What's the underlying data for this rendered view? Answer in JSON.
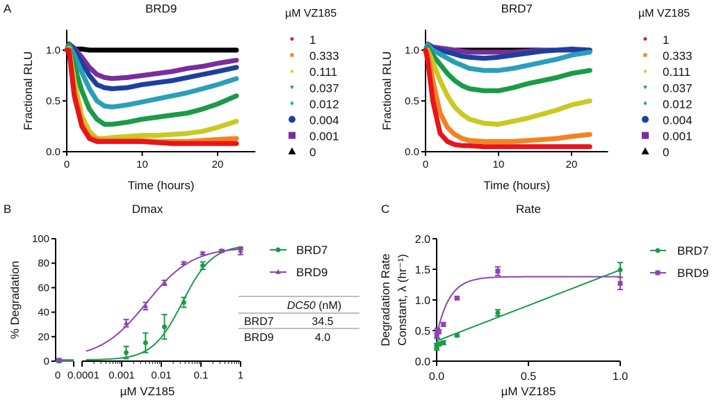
{
  "chart_data": [
    {
      "panel": "A",
      "type": "scatter",
      "title": "BRD9",
      "xlabel": "Time (hours)",
      "ylabel": "Fractional RLU",
      "xlim": [
        0,
        25
      ],
      "ylim": [
        0,
        1.2
      ],
      "xticks": [
        0,
        10,
        20
      ],
      "yticks": [
        "0.0",
        "0.5",
        "1.0"
      ],
      "legend_title": "µM VZ185",
      "legend_position": "right",
      "x": [
        0,
        0.3,
        1,
        2,
        3,
        4,
        5,
        6,
        8,
        10,
        12,
        14,
        16,
        18,
        20,
        22.5
      ],
      "series": [
        {
          "name": "1",
          "color": "#e8141c",
          "marker": "circle-small",
          "values": [
            1,
            1.0,
            0.55,
            0.25,
            0.13,
            0.1,
            0.1,
            0.1,
            0.1,
            0.1,
            0.09,
            0.08,
            0.08,
            0.08,
            0.08,
            0.08
          ]
        },
        {
          "name": "0.333",
          "color": "#f5821f",
          "marker": "square-small",
          "values": [
            1,
            1.0,
            0.6,
            0.27,
            0.15,
            0.12,
            0.11,
            0.11,
            0.11,
            0.11,
            0.1,
            0.1,
            0.1,
            0.11,
            0.12,
            0.13
          ]
        },
        {
          "name": "0.111",
          "color": "#c9c923",
          "marker": "triangle-up-small",
          "values": [
            1,
            1.02,
            0.7,
            0.35,
            0.2,
            0.13,
            0.13,
            0.14,
            0.15,
            0.16,
            0.16,
            0.17,
            0.18,
            0.2,
            0.24,
            0.3
          ]
        },
        {
          "name": "0.037",
          "color": "#1b9a48",
          "marker": "triangle-down-small",
          "values": [
            1,
            1.04,
            0.85,
            0.6,
            0.42,
            0.32,
            0.27,
            0.27,
            0.29,
            0.32,
            0.34,
            0.36,
            0.38,
            0.42,
            0.47,
            0.55
          ]
        },
        {
          "name": "0.012",
          "color": "#2aa0b8",
          "marker": "diamond-small",
          "values": [
            1,
            1.05,
            0.95,
            0.78,
            0.62,
            0.5,
            0.45,
            0.44,
            0.46,
            0.49,
            0.52,
            0.55,
            0.58,
            0.62,
            0.66,
            0.72
          ]
        },
        {
          "name": "0.004",
          "color": "#1d3f9e",
          "marker": "circle",
          "values": [
            1,
            1.06,
            1.0,
            0.88,
            0.75,
            0.66,
            0.63,
            0.62,
            0.63,
            0.66,
            0.68,
            0.7,
            0.73,
            0.76,
            0.79,
            0.83
          ]
        },
        {
          "name": "0.001",
          "color": "#7b2d9b",
          "marker": "square",
          "values": [
            1,
            1.06,
            1.02,
            0.93,
            0.83,
            0.76,
            0.73,
            0.72,
            0.73,
            0.75,
            0.77,
            0.79,
            0.82,
            0.84,
            0.87,
            0.9
          ]
        },
        {
          "name": "0",
          "color": "#000000",
          "marker": "triangle-up",
          "values": [
            1,
            1.02,
            1.01,
            1.01,
            1.0,
            1.0,
            1.0,
            1.0,
            1.0,
            1.0,
            1.0,
            1.0,
            1.0,
            1.0,
            1.0,
            1.0
          ]
        }
      ]
    },
    {
      "type": "scatter",
      "title": "BRD7",
      "xlabel": "Time (hours)",
      "ylabel": "Fractional RLU",
      "xlim": [
        0,
        25
      ],
      "ylim": [
        0,
        1.2
      ],
      "xticks": [
        0,
        10,
        20
      ],
      "yticks": [
        "0.0",
        "0.5",
        "1.0"
      ],
      "legend_title": "µM VZ185",
      "legend_position": "right",
      "x": [
        0,
        0.3,
        1,
        2,
        3,
        4,
        5,
        6,
        8,
        10,
        12,
        14,
        16,
        18,
        20,
        22.5
      ],
      "series": [
        {
          "name": "1",
          "color": "#e8141c",
          "marker": "circle-small",
          "values": [
            1,
            0.9,
            0.5,
            0.18,
            0.1,
            0.07,
            0.06,
            0.06,
            0.05,
            0.05,
            0.05,
            0.05,
            0.05,
            0.05,
            0.05,
            0.05
          ]
        },
        {
          "name": "0.333",
          "color": "#f5821f",
          "marker": "square-small",
          "values": [
            1,
            0.98,
            0.7,
            0.38,
            0.24,
            0.17,
            0.13,
            0.11,
            0.1,
            0.1,
            0.1,
            0.11,
            0.12,
            0.13,
            0.15,
            0.17
          ]
        },
        {
          "name": "0.111",
          "color": "#c9c923",
          "marker": "triangle-up-small",
          "values": [
            1,
            1.0,
            0.88,
            0.7,
            0.55,
            0.44,
            0.37,
            0.32,
            0.28,
            0.27,
            0.3,
            0.33,
            0.37,
            0.41,
            0.46,
            0.5
          ]
        },
        {
          "name": "0.037",
          "color": "#1b9a48",
          "marker": "triangle-down-small",
          "values": [
            1,
            1.03,
            0.95,
            0.86,
            0.77,
            0.7,
            0.65,
            0.62,
            0.6,
            0.6,
            0.63,
            0.67,
            0.7,
            0.73,
            0.77,
            0.8
          ]
        },
        {
          "name": "0.012",
          "color": "#2aa0b8",
          "marker": "diamond-small",
          "values": [
            1,
            1.05,
            1.0,
            0.96,
            0.92,
            0.88,
            0.85,
            0.82,
            0.8,
            0.8,
            0.82,
            0.85,
            0.88,
            0.91,
            0.95,
            0.98
          ]
        },
        {
          "name": "0.004",
          "color": "#1d3f9e",
          "marker": "circle",
          "values": [
            1,
            1.05,
            1.02,
            1.0,
            0.98,
            0.96,
            0.94,
            0.93,
            0.92,
            0.93,
            0.95,
            0.97,
            0.99,
            1.0,
            1.01,
            1.0
          ]
        },
        {
          "name": "0.001",
          "color": "#7b2d9b",
          "marker": "square",
          "values": [
            1,
            1.06,
            1.03,
            1.02,
            1.01,
            1.0,
            0.99,
            0.98,
            0.98,
            0.98,
            0.98,
            0.99,
            1.0,
            1.0,
            1.0,
            1.0
          ]
        },
        {
          "name": "0",
          "color": "#000000",
          "marker": "triangle-up",
          "values": [
            1,
            1.02,
            1.01,
            1.01,
            1.0,
            1.0,
            1.0,
            1.0,
            1.0,
            1.0,
            1.0,
            1.0,
            1.0,
            1.0,
            1.0,
            1.0
          ]
        }
      ]
    },
    {
      "panel": "B",
      "type": "scatter",
      "title": "Dmax",
      "xlabel": "µM VZ185",
      "ylabel": "% Degradation",
      "xscale": "log (with broken axis for 0)",
      "xlim": [
        0.0001,
        1
      ],
      "ylim": [
        0,
        100
      ],
      "xticks": [
        "0",
        "0.0001",
        "0.001",
        "0.01",
        "0.1",
        "1"
      ],
      "yticks": [
        0,
        20,
        40,
        60,
        80,
        100
      ],
      "legend_position": "right",
      "series": [
        {
          "name": "BRD7",
          "color": "#1b9a48",
          "marker": "circle",
          "x": [
            0,
            0.0013,
            0.004,
            0.012,
            0.037,
            0.111,
            0.333,
            1
          ],
          "values": [
            0,
            7,
            15,
            28,
            48,
            78,
            90,
            92
          ],
          "errors": [
            1,
            5,
            8,
            10,
            4,
            3,
            1,
            1
          ]
        },
        {
          "name": "BRD9",
          "color": "#8e44ad",
          "marker": "triangle-up",
          "x": [
            0,
            0.0013,
            0.004,
            0.012,
            0.037,
            0.111,
            0.333,
            1
          ],
          "values": [
            1,
            31,
            45,
            64,
            80,
            88,
            90,
            90
          ],
          "errors": [
            1,
            3,
            3,
            2,
            1,
            1,
            1,
            3
          ]
        }
      ],
      "table": {
        "header": [
          "",
          "DC50",
          "(nM)"
        ],
        "rows": [
          [
            "BRD7",
            "34.5"
          ],
          [
            "BRD9",
            "4.0"
          ]
        ]
      }
    },
    {
      "panel": "C",
      "type": "scatter",
      "title": "Rate",
      "xlabel": "µM VZ185",
      "ylabel_line1": "Degradation Rate",
      "ylabel_line2": "Constant, λ (hr⁻¹)",
      "xlim": [
        0,
        1
      ],
      "ylim": [
        0,
        2
      ],
      "xticks": [
        "0.0",
        "0.5",
        "1.0"
      ],
      "yticks": [
        "0.0",
        "0.5",
        "1.0",
        "1.5",
        "2.0"
      ],
      "legend_position": "right",
      "series": [
        {
          "name": "BRD7",
          "color": "#1b9a48",
          "marker": "circle",
          "x": [
            0,
            0.001,
            0.004,
            0.012,
            0.037,
            0.111,
            0.333,
            1
          ],
          "values": [
            0.25,
            0.22,
            0.45,
            0.28,
            0.3,
            0.42,
            0.79,
            1.49
          ],
          "errors": [
            0.04,
            0.04,
            0.08,
            0.03,
            0.03,
            0.02,
            0.05,
            0.12
          ]
        },
        {
          "name": "BRD9",
          "color": "#8e44ad",
          "marker": "square",
          "x": [
            0.001,
            0.004,
            0.012,
            0.037,
            0.111,
            0.333,
            1
          ],
          "values": [
            0.42,
            0.5,
            0.48,
            0.6,
            1.03,
            1.47,
            1.27
          ],
          "errors": [
            0.04,
            0.04,
            0.03,
            0.03,
            0.02,
            0.07,
            0.1
          ]
        }
      ]
    }
  ]
}
